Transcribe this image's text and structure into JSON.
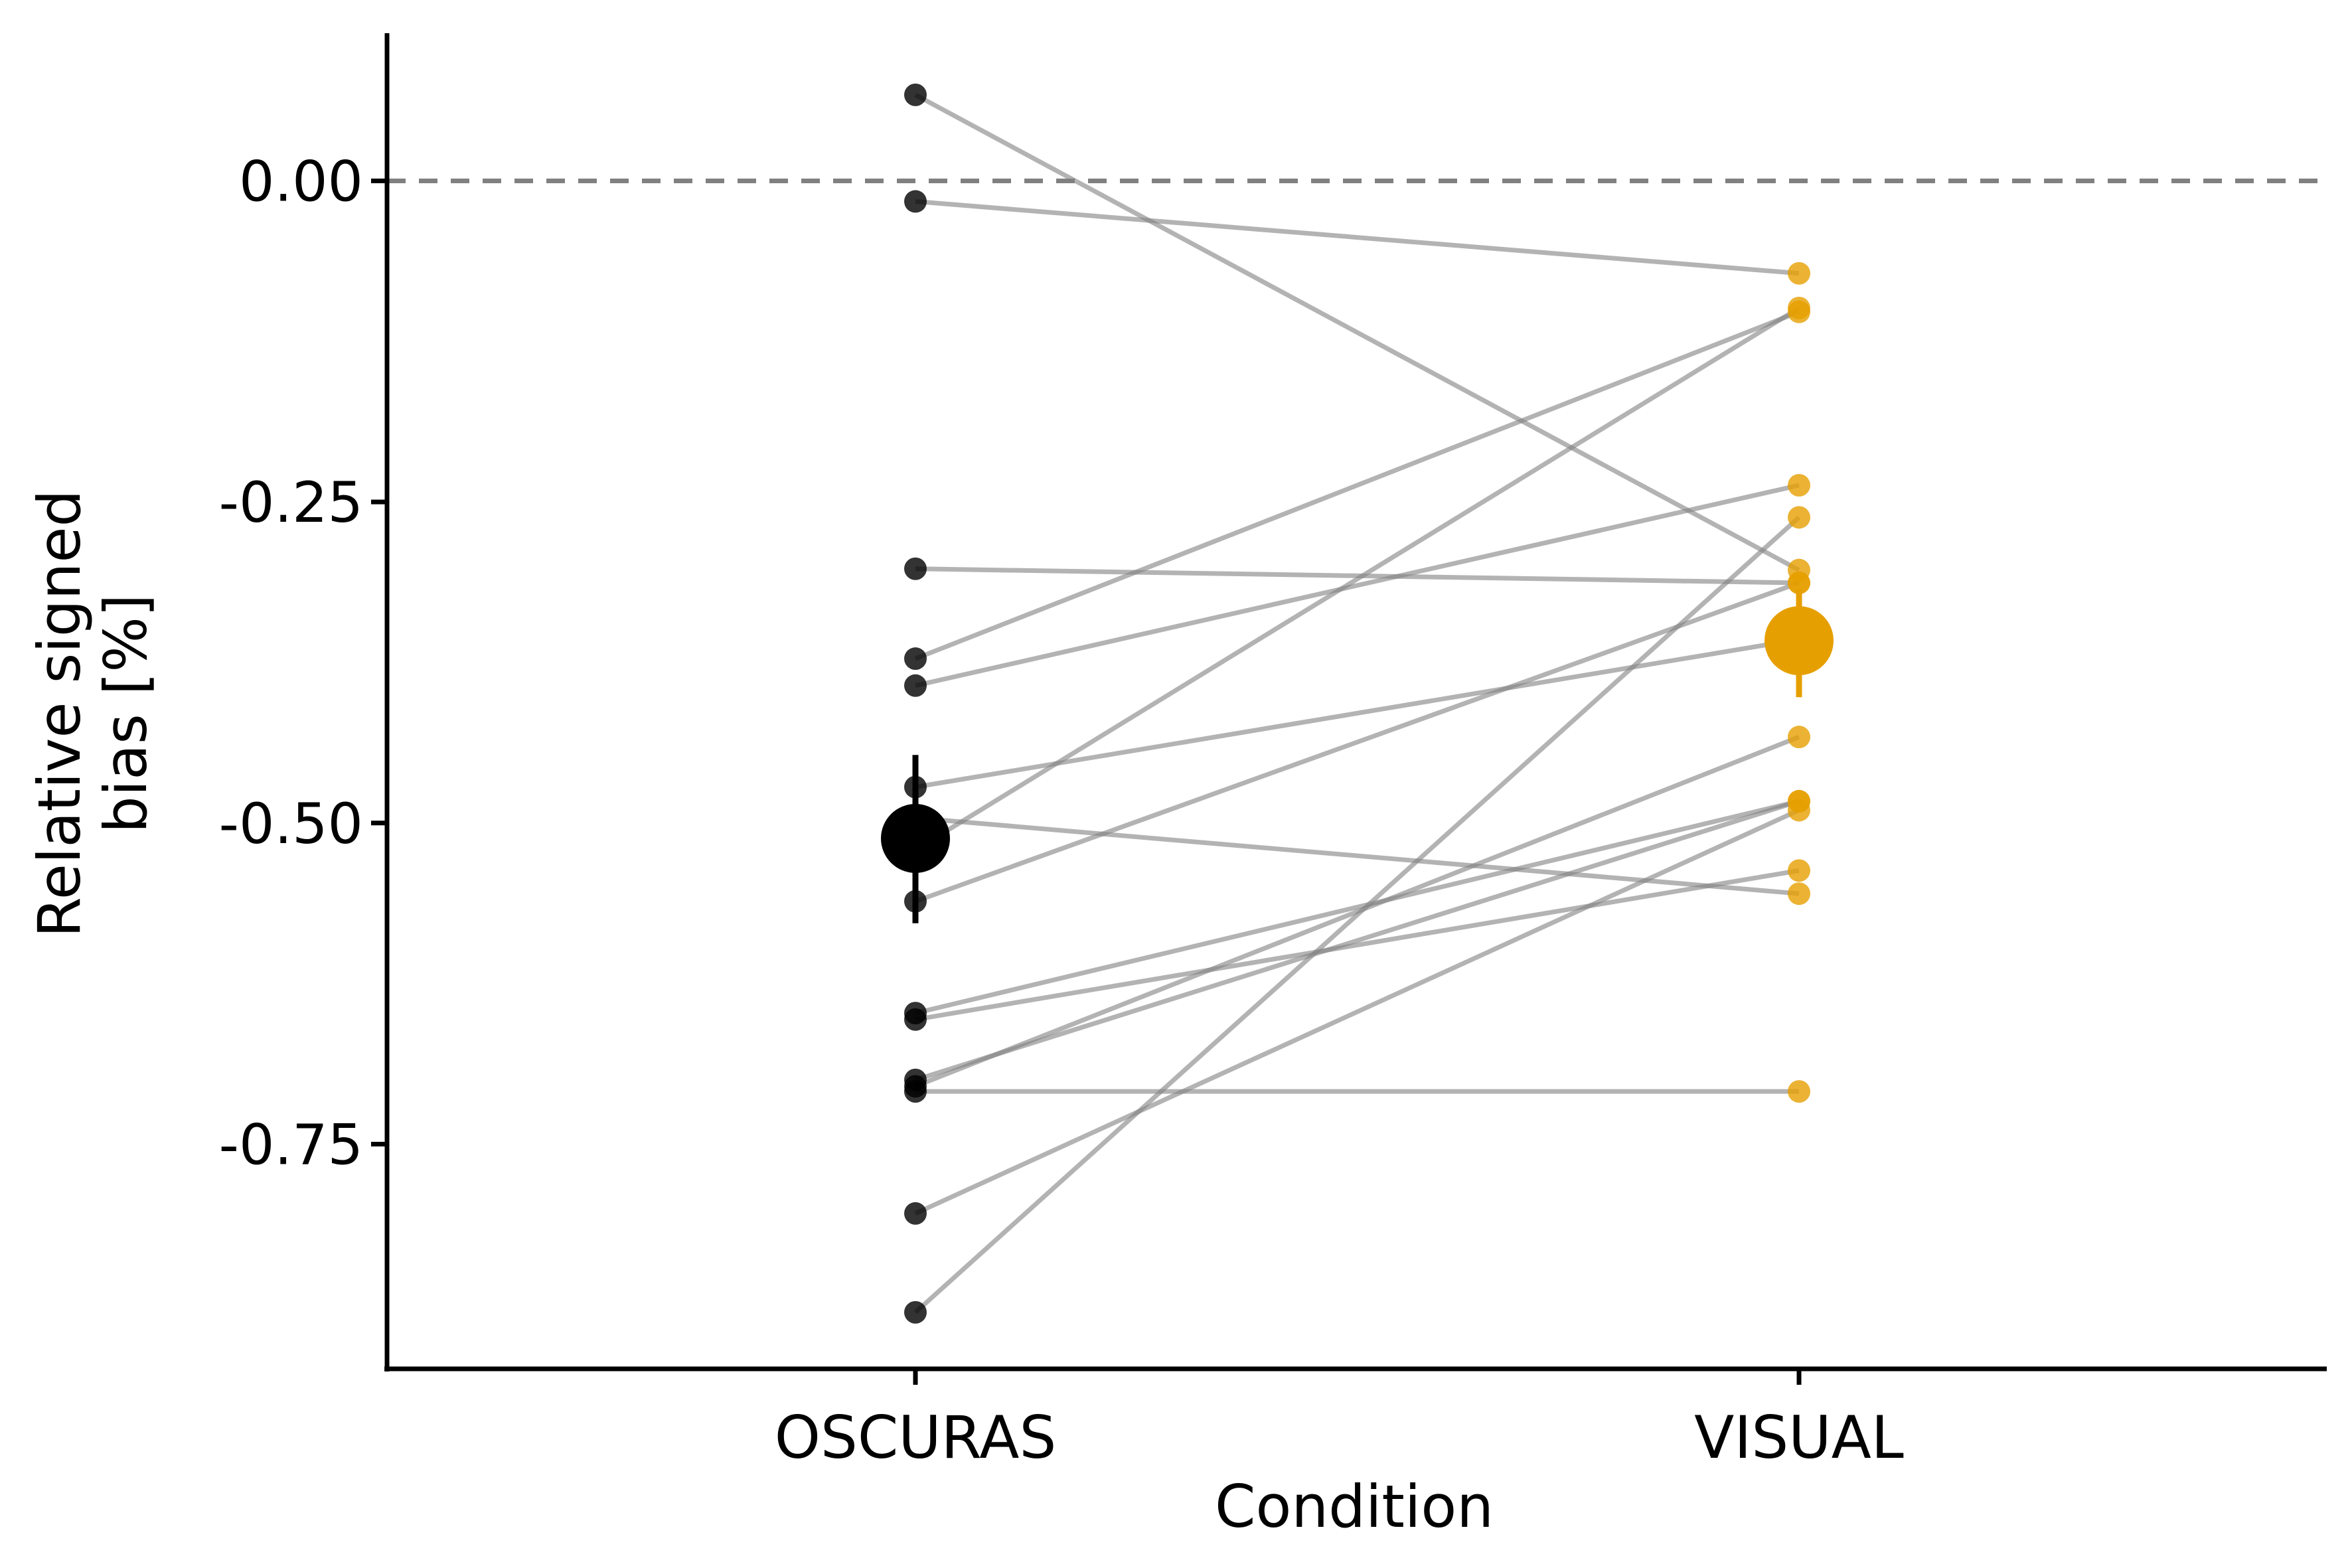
{
  "chart_data": {
    "type": "scatter",
    "subtype": "paired-dot-plot",
    "xlabel": "Condition",
    "ylabel_lines": [
      "Relative signed",
      "bias [%]"
    ],
    "categories": [
      "OSCURAS",
      "VISUAL"
    ],
    "ylim": [
      -0.925,
      0.115
    ],
    "yticks": [
      0.0,
      -0.25,
      -0.5,
      -0.75
    ],
    "ytick_labels": [
      "0.00",
      "-0.25",
      "-0.50",
      "-0.75"
    ],
    "reference_line": {
      "y": 0.0,
      "style": "dashed",
      "color": "#808080"
    },
    "grid": false,
    "legend": "none",
    "series": [
      {
        "values": [
          0.067,
          -0.303
        ]
      },
      {
        "values": [
          -0.016,
          -0.072
        ]
      },
      {
        "values": [
          -0.302,
          -0.313
        ]
      },
      {
        "values": [
          -0.372,
          -0.102
        ]
      },
      {
        "values": [
          -0.393,
          -0.237
        ]
      },
      {
        "values": [
          -0.472,
          -0.357
        ]
      },
      {
        "values": [
          -0.496,
          -0.555
        ]
      },
      {
        "values": [
          -0.521,
          -0.099
        ]
      },
      {
        "values": [
          -0.561,
          -0.313
        ]
      },
      {
        "values": [
          -0.648,
          -0.483
        ]
      },
      {
        "values": [
          -0.653,
          -0.537
        ]
      },
      {
        "values": [
          -0.7,
          -0.483
        ]
      },
      {
        "values": [
          -0.705,
          -0.433
        ]
      },
      {
        "values": [
          -0.709,
          -0.709
        ]
      },
      {
        "values": [
          -0.804,
          -0.49
        ]
      },
      {
        "values": [
          -0.881,
          -0.262
        ]
      }
    ],
    "means": [
      {
        "category": "OSCURAS",
        "value": -0.512,
        "error_low": -0.578,
        "error_high": -0.447,
        "color": "#000000"
      },
      {
        "category": "VISUAL",
        "value": -0.358,
        "error_low": -0.402,
        "error_high": -0.318,
        "color": "#E69F00"
      }
    ],
    "colors": {
      "OSCURAS": "#000000",
      "VISUAL": "#E69F00",
      "lines": "#808080"
    }
  }
}
